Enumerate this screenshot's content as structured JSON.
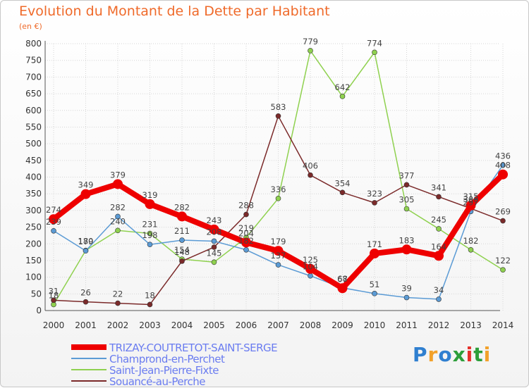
{
  "title": "Evolution du Montant de la Dette par Habitant",
  "unit_label": "(en €)",
  "brand": {
    "text": "Proxiti",
    "colors": [
      "#2f7fd0",
      "#f2a12a",
      "#2f7fd0",
      "#2c9e3a",
      "#e5302a",
      "#2c9e3a",
      "#f2a12a"
    ]
  },
  "chart_data": {
    "type": "line",
    "title": "Evolution du Montant de la Dette par Habitant",
    "ylabel": "(en €)",
    "xlabel": "",
    "ylim": [
      0,
      800
    ],
    "yticks": [
      0,
      50,
      100,
      150,
      200,
      250,
      300,
      350,
      400,
      450,
      500,
      550,
      600,
      650,
      700,
      750,
      800
    ],
    "categories": [
      "2000",
      "2001",
      "2002",
      "2003",
      "2004",
      "2005",
      "2006",
      "2007",
      "2008",
      "2009",
      "2010",
      "2011",
      "2012",
      "2013",
      "2014"
    ],
    "grid": true,
    "legend_position": "bottom-left",
    "series": [
      {
        "name": "TRIZAY-COUTRETOT-SAINT-SERGE",
        "color": "#ee0000",
        "values": [
          274,
          349,
          379,
          319,
          282,
          243,
          204,
          179,
          125,
          67,
          171,
          183,
          164,
          315,
          408
        ],
        "labels": [
          "274",
          "349",
          "379",
          "319",
          "282",
          "243",
          "204",
          "179",
          "125",
          "67",
          "171",
          "183",
          "164",
          "315",
          "408"
        ]
      },
      {
        "name": "Champrond-en-Perchet",
        "color": "#5b9bd5",
        "values": [
          239,
          179,
          282,
          198,
          211,
          208,
          182,
          137,
          104,
          68,
          51,
          39,
          34,
          297,
          436
        ],
        "labels": [
          "239",
          "179",
          "282",
          "198",
          "211",
          "208",
          "182",
          "137",
          "104",
          "68",
          "51",
          "39",
          "34",
          "297",
          "436"
        ]
      },
      {
        "name": "Saint-Jean-Pierre-Fixte",
        "color": "#8fd14f",
        "values": [
          18,
          180,
          240,
          231,
          154,
          145,
          219,
          336,
          779,
          642,
          774,
          305,
          245,
          182,
          122
        ],
        "labels": [
          "18",
          "180",
          "240",
          "231",
          "154",
          "145",
          "219",
          "336",
          "779",
          "642",
          "774",
          "305",
          "245",
          "182",
          "122"
        ]
      },
      {
        "name": "Souancé-au-Perche",
        "color": "#7b2a2a",
        "values": [
          31,
          26,
          22,
          18,
          148,
          190,
          288,
          583,
          406,
          354,
          323,
          377,
          341,
          306,
          269
        ],
        "labels": [
          "31",
          "26",
          "22",
          "18",
          "148",
          "",
          "288",
          "583",
          "406",
          "354",
          "323",
          "377",
          "341",
          "306",
          "269"
        ]
      }
    ]
  }
}
